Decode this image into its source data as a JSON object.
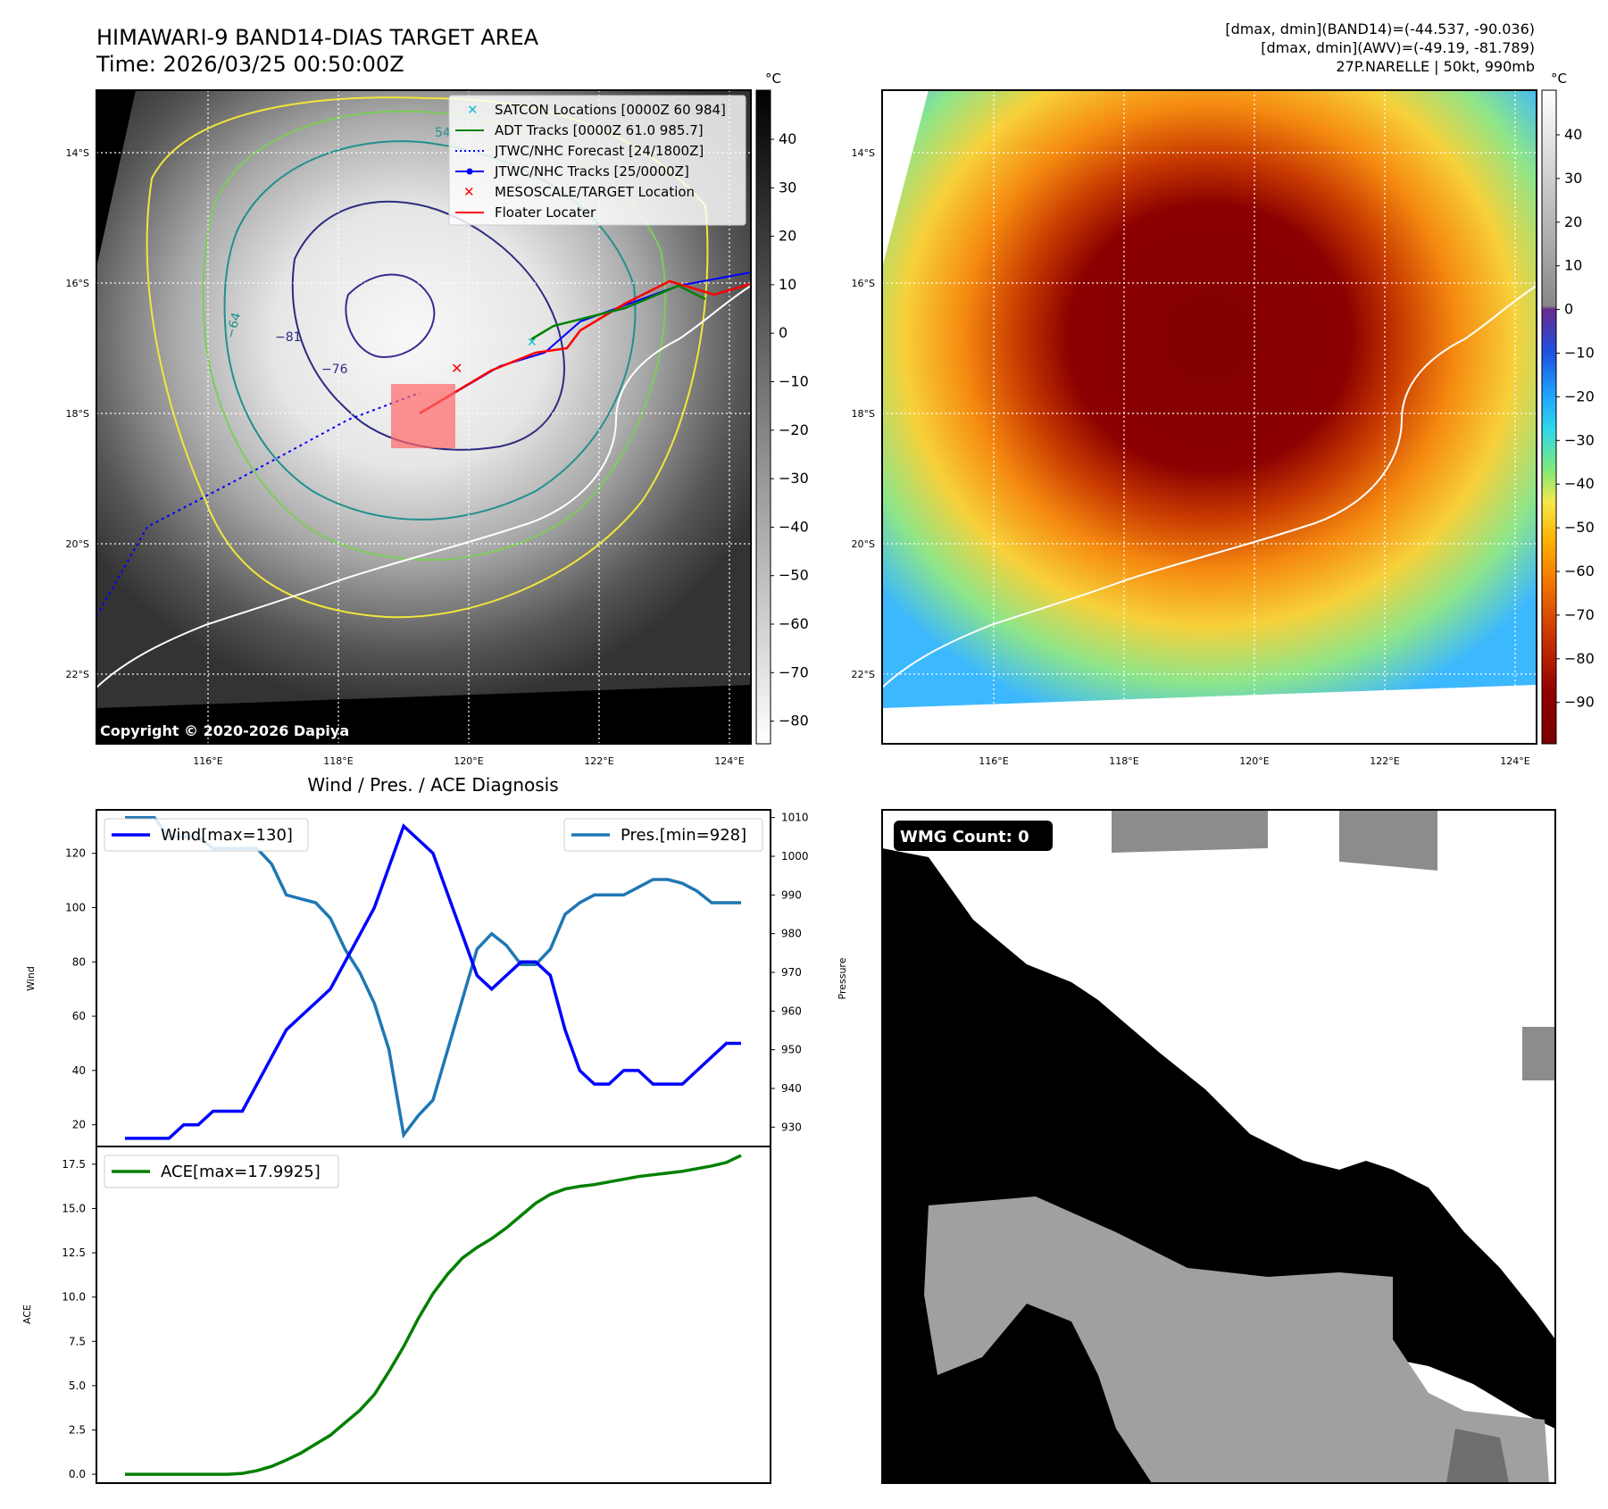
{
  "header": {
    "title_line1": "HIMAWARI-9 BAND14-DIAS TARGET AREA",
    "title_line2": "Time: 2026/03/25 00:50:00Z",
    "stats_line1": "[dmax, dmin](BAND14)=(-44.537, -90.036)",
    "stats_line2": "[dmax, dmin](AWV)=(-49.19, -81.789)",
    "stats_line3": "27P.NARELLE | 50kt, 990mb"
  },
  "map_left": {
    "copyright": "Copyright © 2020-2026 Dapiya",
    "unit": "°C",
    "lat_labels": [
      "14°S",
      "16°S",
      "18°S",
      "20°S",
      "22°S"
    ],
    "lon_labels": [
      "116°E",
      "118°E",
      "120°E",
      "122°E",
      "124°E"
    ],
    "colorbar_ticks": [
      "40",
      "30",
      "20",
      "10",
      "0",
      "−10",
      "−20",
      "−30",
      "−40",
      "−50",
      "−60",
      "−70",
      "−80"
    ],
    "contour_labels": [
      "54",
      "−64",
      "−81",
      "−76"
    ],
    "legend": [
      {
        "label": "SATCON Locations [0000Z 60 984]",
        "color": "#17becf",
        "icon": "x-marker-icon"
      },
      {
        "label": "ADT Tracks [0000Z 61.0 985.7]",
        "color": "#008000",
        "icon": "solid-line-icon"
      },
      {
        "label": "JTWC/NHC Forecast [24/1800Z]",
        "color": "#0000ff",
        "icon": "dotted-line-icon"
      },
      {
        "label": "JTWC/NHC Tracks [25/0000Z]",
        "color": "#0000ff",
        "icon": "line-dot-icon"
      },
      {
        "label": "MESOSCALE/TARGET Location",
        "color": "#ff0000",
        "icon": "x-marker-icon"
      },
      {
        "label": "Floater Locater",
        "color": "#ff0000",
        "icon": "solid-line-icon"
      }
    ]
  },
  "map_right": {
    "unit": "°C",
    "lat_labels": [
      "14°S",
      "16°S",
      "18°S",
      "20°S",
      "22°S"
    ],
    "lon_labels": [
      "116°E",
      "118°E",
      "120°E",
      "122°E",
      "124°E"
    ],
    "colorbar_ticks": [
      "40",
      "30",
      "20",
      "10",
      "0",
      "−10",
      "−20",
      "−30",
      "−40",
      "−50",
      "−60",
      "−70",
      "−80",
      "−90"
    ]
  },
  "wmg": {
    "badge": "WMG Count: 0"
  },
  "colors": {
    "wind": "#0000ff",
    "pressure": "#1f77b4",
    "ace": "#008000",
    "floater": "#ff0000",
    "satcon": "#17becf"
  },
  "chart_data": [
    {
      "type": "line",
      "title": "Wind / Pres. / ACE Diagnosis",
      "ylabel": "Wind",
      "ylabel_right": "Pressure",
      "ylim": [
        12,
        136
      ],
      "ylim_right": [
        925,
        1012
      ],
      "y_ticks": [
        20,
        40,
        60,
        80,
        100,
        120
      ],
      "y_ticks_right": [
        930,
        940,
        950,
        960,
        970,
        980,
        990,
        1000,
        1010
      ],
      "series": [
        {
          "name": "Wind",
          "legend": "Wind[max=130]",
          "axis": "left",
          "values": [
            15,
            15,
            15,
            15,
            20,
            20,
            25,
            25,
            25,
            35,
            45,
            55,
            60,
            65,
            70,
            80,
            90,
            100,
            115,
            130,
            125,
            120,
            105,
            90,
            75,
            70,
            75,
            80,
            80,
            75,
            55,
            40,
            35,
            35,
            40,
            40,
            35,
            35,
            35,
            40,
            45,
            50,
            50
          ]
        },
        {
          "name": "Pressure",
          "legend": "Pres.[min=928]",
          "axis": "right",
          "values": [
            1010,
            1010,
            1010,
            1005,
            1005,
            1005,
            1002,
            1002,
            1002,
            1002,
            998,
            990,
            989,
            988,
            984,
            976,
            970,
            962,
            950,
            928,
            933,
            937,
            950,
            963,
            976,
            980,
            977,
            972,
            972,
            976,
            985,
            988,
            990,
            990,
            990,
            992,
            994,
            994,
            993,
            991,
            988,
            988,
            988
          ]
        }
      ]
    },
    {
      "type": "line",
      "ylabel": "ACE",
      "ylim": [
        -0.5,
        18.5
      ],
      "y_ticks": [
        0.0,
        2.5,
        5.0,
        7.5,
        10.0,
        12.5,
        15.0,
        17.5
      ],
      "series": [
        {
          "name": "ACE",
          "legend": "ACE[max=17.9925]",
          "values": [
            0,
            0,
            0,
            0,
            0,
            0,
            0,
            0,
            0.05,
            0.2,
            0.45,
            0.8,
            1.2,
            1.7,
            2.2,
            2.9,
            3.6,
            4.5,
            5.8,
            7.2,
            8.8,
            10.2,
            11.3,
            12.2,
            12.8,
            13.3,
            13.9,
            14.6,
            15.3,
            15.8,
            16.1,
            16.25,
            16.35,
            16.5,
            16.65,
            16.8,
            16.9,
            17.0,
            17.1,
            17.25,
            17.4,
            17.6,
            17.9925
          ]
        }
      ]
    }
  ]
}
